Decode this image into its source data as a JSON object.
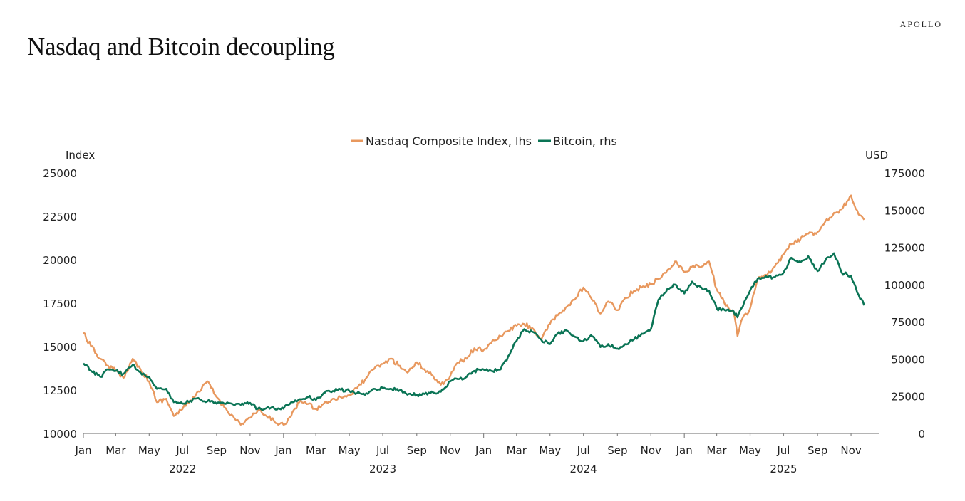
{
  "header": {
    "title": "Nasdaq and Bitcoin decoupling",
    "brand": "APOLLO"
  },
  "colors": {
    "nasdaq": "#E8985E",
    "bitcoin": "#0A7455",
    "axis": "#888888",
    "text": "#222222"
  },
  "chart_data": {
    "type": "line",
    "title": "Nasdaq and Bitcoin decoupling",
    "legend": [
      "Nasdaq Composite Index, lhs",
      "Bitcoin, rhs"
    ],
    "legend_position": "top-center",
    "ylabel_left": "Index",
    "ylabel_right": "USD",
    "ylim_left": [
      10000,
      25000
    ],
    "ylim_right": [
      0,
      175000
    ],
    "yticks_left": [
      "25000",
      "22500",
      "20000",
      "17500",
      "15000",
      "12500",
      "10000"
    ],
    "yticks_right": [
      "175000",
      "150000",
      "125000",
      "100000",
      "75000",
      "50000",
      "25000",
      "0"
    ],
    "xlim": [
      "2022-01-01",
      "2025-11-25"
    ],
    "xtick_months": [
      "Jan",
      "Mar",
      "May",
      "Jul",
      "Sep",
      "Nov",
      "Jan",
      "Mar",
      "May",
      "Jul",
      "Sep",
      "Nov",
      "Jan",
      "Mar",
      "May",
      "Jul",
      "Sep",
      "Nov",
      "Jan",
      "Mar",
      "May",
      "Jul",
      "Sep",
      "Nov"
    ],
    "xtick_years": [
      "2022",
      "2023",
      "2024",
      "2025"
    ],
    "grid": false,
    "x": [
      "2022-01-01",
      "2022-01-15",
      "2022-02-01",
      "2022-02-15",
      "2022-03-01",
      "2022-03-15",
      "2022-04-01",
      "2022-04-15",
      "2022-05-01",
      "2022-05-15",
      "2022-06-01",
      "2022-06-15",
      "2022-07-01",
      "2022-07-15",
      "2022-08-01",
      "2022-08-15",
      "2022-09-01",
      "2022-09-15",
      "2022-10-01",
      "2022-10-15",
      "2022-11-01",
      "2022-11-15",
      "2022-12-01",
      "2022-12-15",
      "2023-01-01",
      "2023-01-15",
      "2023-02-01",
      "2023-02-15",
      "2023-03-01",
      "2023-03-15",
      "2023-04-01",
      "2023-04-15",
      "2023-05-01",
      "2023-05-15",
      "2023-06-01",
      "2023-06-15",
      "2023-07-01",
      "2023-07-15",
      "2023-08-01",
      "2023-08-15",
      "2023-09-01",
      "2023-09-15",
      "2023-10-01",
      "2023-10-15",
      "2023-11-01",
      "2023-11-15",
      "2023-12-01",
      "2023-12-15",
      "2024-01-01",
      "2024-01-15",
      "2024-02-01",
      "2024-02-15",
      "2024-03-01",
      "2024-03-15",
      "2024-04-01",
      "2024-04-15",
      "2024-05-01",
      "2024-05-15",
      "2024-06-01",
      "2024-06-15",
      "2024-07-01",
      "2024-07-15",
      "2024-08-01",
      "2024-08-15",
      "2024-09-01",
      "2024-09-15",
      "2024-10-01",
      "2024-10-15",
      "2024-11-01",
      "2024-11-15",
      "2024-12-01",
      "2024-12-15",
      "2025-01-01",
      "2025-01-15",
      "2025-02-01",
      "2025-02-15",
      "2025-03-01",
      "2025-03-15",
      "2025-04-01",
      "2025-04-08",
      "2025-04-15",
      "2025-05-01",
      "2025-05-15",
      "2025-06-01",
      "2025-06-15",
      "2025-07-01",
      "2025-07-15",
      "2025-08-01",
      "2025-08-15",
      "2025-09-01",
      "2025-09-15",
      "2025-10-01",
      "2025-10-15",
      "2025-11-01",
      "2025-11-15",
      "2025-11-25"
    ],
    "series": [
      {
        "name": "Nasdaq Composite Index, lhs",
        "axis": "left",
        "values": [
          15800,
          15000,
          14300,
          13900,
          13600,
          13200,
          14300,
          13700,
          13000,
          11800,
          12000,
          11000,
          11400,
          11900,
          12400,
          13000,
          12100,
          11500,
          11000,
          10500,
          10900,
          11300,
          11000,
          10700,
          10500,
          11000,
          11900,
          11700,
          11400,
          11700,
          12000,
          12100,
          12200,
          12600,
          13200,
          13700,
          14000,
          14300,
          13900,
          13500,
          14100,
          13700,
          13300,
          12800,
          13300,
          14100,
          14300,
          14900,
          14800,
          15200,
          15600,
          15900,
          16200,
          16300,
          16000,
          15400,
          16300,
          16800,
          17300,
          17700,
          18400,
          17800,
          16900,
          17600,
          17100,
          17800,
          18200,
          18400,
          18600,
          18900,
          19400,
          19900,
          19300,
          19600,
          19600,
          19900,
          18300,
          17500,
          17000,
          15600,
          16500,
          17200,
          18900,
          19100,
          19600,
          20300,
          20900,
          21200,
          21500,
          21600,
          22200,
          22700,
          22900,
          23700,
          22600,
          22300
        ]
      },
      {
        "name": "Bitcoin, rhs",
        "axis": "right",
        "values": [
          47000,
          42000,
          38000,
          43000,
          42000,
          40000,
          46000,
          41000,
          38000,
          30000,
          30000,
          21000,
          20000,
          22000,
          23000,
          21500,
          20000,
          20000,
          19500,
          19200,
          20500,
          16500,
          17000,
          16800,
          16600,
          21000,
          23000,
          24500,
          22500,
          27000,
          28500,
          29500,
          28500,
          27000,
          27000,
          30000,
          30500,
          30000,
          29000,
          26000,
          26000,
          26500,
          27500,
          28000,
          35000,
          36500,
          38000,
          42000,
          43000,
          42000,
          43000,
          52000,
          62000,
          70000,
          68000,
          63000,
          60000,
          67000,
          69000,
          65000,
          62000,
          66000,
          58000,
          60000,
          57000,
          60000,
          63000,
          67000,
          70000,
          90000,
          97000,
          100000,
          94000,
          102000,
          98000,
          96000,
          84000,
          83000,
          82000,
          78000,
          84000,
          96000,
          104000,
          105000,
          105000,
          108000,
          118000,
          115000,
          119000,
          109000,
          116000,
          121000,
          108000,
          106000,
          93000,
          86000
        ]
      }
    ]
  }
}
